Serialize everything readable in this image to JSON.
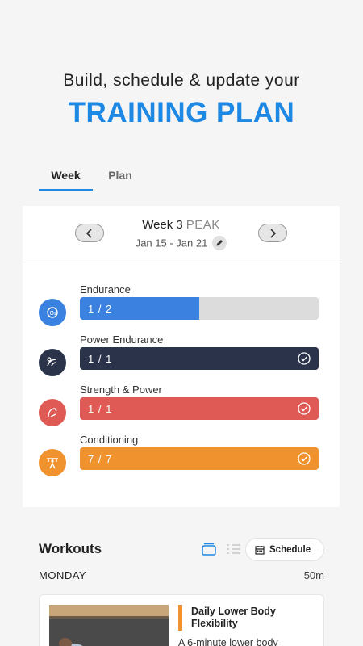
{
  "promo": {
    "headline": "Build, schedule & update your",
    "headline_emphasis": "TRAINING PLAN"
  },
  "tabs": [
    {
      "label": "Week",
      "active": true
    },
    {
      "label": "Plan",
      "active": false
    }
  ],
  "week": {
    "title": "Week 3",
    "phase": "PEAK",
    "range": "Jan 15 - Jan 21"
  },
  "categories": [
    {
      "name": "Endurance",
      "progress": "1 / 2",
      "completed": 1,
      "total": 2,
      "color": "#3b82e0",
      "icon": "endurance-icon"
    },
    {
      "name": "Power Endurance",
      "progress": "1 / 1",
      "completed": 1,
      "total": 1,
      "color": "#2a334a",
      "icon": "power-endurance-icon"
    },
    {
      "name": "Strength & Power",
      "progress": "1 / 1",
      "completed": 1,
      "total": 1,
      "color": "#e05a55",
      "icon": "strength-power-icon"
    },
    {
      "name": "Conditioning",
      "progress": "7 / 7",
      "completed": 7,
      "total": 7,
      "color": "#f0922e",
      "icon": "conditioning-icon"
    }
  ],
  "workouts": {
    "title": "Workouts",
    "schedule_label": "Schedule",
    "day": "MONDAY",
    "duration": "50m",
    "items": [
      {
        "title": "Daily Lower Body Flexibility",
        "description": "A 6-minute lower body",
        "accent": "#f0922e"
      }
    ]
  }
}
